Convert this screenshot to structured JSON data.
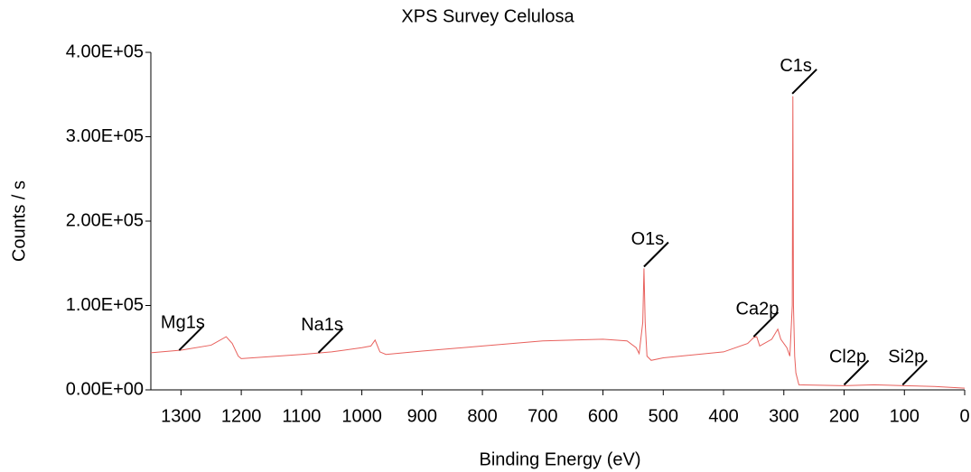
{
  "chart_data": {
    "type": "line",
    "title": "XPS Survey Celulosa",
    "x_label": "Binding Energy (eV)",
    "y_label": "Counts / s",
    "xlim": [
      1350,
      0
    ],
    "ylim": [
      0,
      400000
    ],
    "xticks": [
      1300,
      1200,
      1100,
      1000,
      900,
      800,
      700,
      600,
      500,
      400,
      300,
      200,
      100,
      0
    ],
    "yticks": [
      {
        "value": 0,
        "label": "0.00E+00"
      },
      {
        "value": 100000,
        "label": "1.00E+05"
      },
      {
        "value": 200000,
        "label": "2.00E+05"
      },
      {
        "value": 300000,
        "label": "3.00E+05"
      },
      {
        "value": 400000,
        "label": "4.00E+05"
      }
    ],
    "series": [
      {
        "color": "#e8605c",
        "x": [
          1350,
          1300,
          1250,
          1225,
          1215,
          1205,
          1200,
          1100,
          1050,
          1000,
          985,
          978,
          970,
          960,
          900,
          800,
          700,
          600,
          560,
          545,
          540,
          534,
          532,
          530,
          527,
          520,
          500,
          400,
          360,
          350,
          345,
          340,
          320,
          310,
          305,
          295,
          290,
          286,
          285,
          284,
          282,
          280,
          275,
          200,
          150,
          100,
          50,
          0
        ],
        "values": [
          44000,
          47000,
          53000,
          63000,
          55000,
          40000,
          37000,
          42000,
          45000,
          50000,
          52000,
          59000,
          45000,
          42000,
          46000,
          52000,
          58000,
          60000,
          58000,
          50000,
          43000,
          80000,
          144000,
          80000,
          40000,
          35000,
          38000,
          45000,
          55000,
          62000,
          63000,
          52000,
          60000,
          72000,
          60000,
          50000,
          40000,
          100000,
          348000,
          100000,
          40000,
          20000,
          6000,
          5000,
          6000,
          5000,
          4000,
          2000
        ]
      }
    ],
    "annotations": [
      {
        "text": "Mg1s",
        "x": 1303,
        "y": 47000
      },
      {
        "text": "Na1s",
        "x": 1072,
        "y": 44000
      },
      {
        "text": "O1s",
        "x": 532,
        "y": 146000
      },
      {
        "text": "Ca2p",
        "x": 350,
        "y": 63000
      },
      {
        "text": "C1s",
        "x": 286,
        "y": 351000
      },
      {
        "text": "Cl2p",
        "x": 200,
        "y": 6000
      },
      {
        "text": "Si2p",
        "x": 103,
        "y": 6000
      }
    ]
  }
}
